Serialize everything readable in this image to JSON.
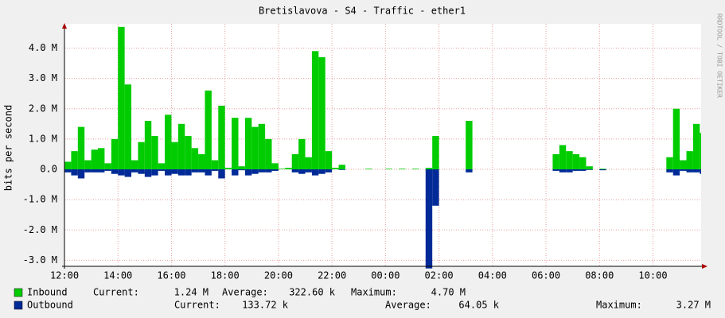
{
  "chart_data": {
    "type": "mirror-area",
    "title": "Bretislavova - S4 - Traffic - ether1",
    "y_label": "bits per second",
    "watermark": "RRDTOOL / TOBI OETIKER",
    "xlim": [
      12,
      35.8
    ],
    "xticks": [
      {
        "value": 12,
        "label": "12:00"
      },
      {
        "value": 14,
        "label": "14:00"
      },
      {
        "value": 16,
        "label": "16:00"
      },
      {
        "value": 18,
        "label": "18:00"
      },
      {
        "value": 20,
        "label": "20:00"
      },
      {
        "value": 22,
        "label": "22:00"
      },
      {
        "value": 24,
        "label": "00:00"
      },
      {
        "value": 26,
        "label": "02:00"
      },
      {
        "value": 28,
        "label": "04:00"
      },
      {
        "value": 30,
        "label": "06:00"
      },
      {
        "value": 32,
        "label": "08:00"
      },
      {
        "value": 34,
        "label": "10:00"
      }
    ],
    "ylim": [
      -3200000.0,
      4800000.0
    ],
    "yticks": [
      {
        "value": -3000000.0,
        "label": "-3.0 M"
      },
      {
        "value": -2000000.0,
        "label": "-2.0 M"
      },
      {
        "value": -1000000.0,
        "label": "-1.0 M"
      },
      {
        "value": 0,
        "label": "0.0"
      },
      {
        "value": 1000000.0,
        "label": "1.0 M"
      },
      {
        "value": 2000000.0,
        "label": "2.0 M"
      },
      {
        "value": 3000000.0,
        "label": "3.0 M"
      },
      {
        "value": 4000000.0,
        "label": "4.0 M"
      }
    ],
    "grid": true,
    "x": [
      12,
      12.25,
      12.5,
      12.75,
      13,
      13.25,
      13.5,
      13.75,
      14,
      14.25,
      14.5,
      14.75,
      15,
      15.25,
      15.5,
      15.75,
      16,
      16.25,
      16.5,
      16.75,
      17,
      17.25,
      17.5,
      17.75,
      18,
      18.25,
      18.5,
      18.75,
      19,
      19.25,
      19.5,
      19.75,
      20,
      20.25,
      20.5,
      20.75,
      21,
      21.25,
      21.5,
      21.75,
      22,
      22.25,
      22.5,
      22.75,
      23,
      23.25,
      23.5,
      23.75,
      24,
      24.25,
      24.5,
      24.75,
      25,
      25.25,
      25.5,
      25.75,
      26,
      26.25,
      26.5,
      26.75,
      27,
      27.25,
      27.5,
      27.75,
      28,
      28.25,
      28.5,
      28.75,
      29,
      29.25,
      29.5,
      29.75,
      30,
      30.25,
      30.5,
      30.75,
      31,
      31.25,
      31.5,
      31.75,
      32,
      32.25,
      32.5,
      32.75,
      33,
      33.25,
      33.5,
      33.75,
      34,
      34.25,
      34.5,
      34.75,
      35,
      35.25,
      35.5,
      35.75
    ],
    "series": [
      {
        "name": "Inbound",
        "color": "#00cc00",
        "values": [
          250000.0,
          600000.0,
          1400000.0,
          300000.0,
          650000.0,
          700000.0,
          200000.0,
          1000000.0,
          4700000.0,
          2800000.0,
          300000.0,
          900000.0,
          1600000.0,
          1100000.0,
          200000.0,
          1800000.0,
          900000.0,
          1500000.0,
          1100000.0,
          700000.0,
          500000.0,
          2600000.0,
          300000.0,
          2100000.0,
          50000.0,
          1700000.0,
          100000.0,
          1700000.0,
          1400000.0,
          1500000.0,
          1000000.0,
          200000.0,
          20000.0,
          50000.0,
          500000.0,
          1000000.0,
          400000.0,
          3900000.0,
          3700000.0,
          600000.0,
          50000.0,
          150000.0,
          0,
          0,
          0,
          20000.0,
          0,
          0,
          20000.0,
          0,
          20000.0,
          0,
          20000.0,
          0,
          50000.0,
          1100000.0,
          0,
          0,
          0,
          0,
          1600000.0,
          0,
          0,
          0,
          0,
          0,
          0,
          0,
          0,
          0,
          0,
          0,
          0,
          500000.0,
          800000.0,
          600000.0,
          500000.0,
          400000.0,
          100000.0,
          0,
          20000.0,
          0,
          0,
          0,
          0,
          0,
          0,
          0,
          0,
          0,
          400000.0,
          2000000.0,
          300000.0,
          600000.0,
          1500000.0,
          1200000.0
        ],
        "stats": [
          {
            "label": "Current:",
            "value": "1.24 M"
          },
          {
            "label": "Average:",
            "value": "322.60 k"
          },
          {
            "label": "Maximum:",
            "value": "4.70 M"
          }
        ]
      },
      {
        "name": "Outbound",
        "color": "#002a97",
        "values": [
          -100000.0,
          -200000.0,
          -300000.0,
          -100000.0,
          -100000.0,
          -100000.0,
          -50000.0,
          -150000.0,
          -200000.0,
          -250000.0,
          -100000.0,
          -150000.0,
          -250000.0,
          -200000.0,
          -50000.0,
          -200000.0,
          -150000.0,
          -200000.0,
          -200000.0,
          -100000.0,
          -100000.0,
          -200000.0,
          -50000.0,
          -300000.0,
          0,
          -200000.0,
          -30000.0,
          -200000.0,
          -150000.0,
          -100000.0,
          -100000.0,
          -50000.0,
          0,
          0,
          -100000.0,
          -150000.0,
          -100000.0,
          -200000.0,
          -150000.0,
          -100000.0,
          0,
          -20000.0,
          0,
          0,
          0,
          0,
          0,
          0,
          0,
          0,
          0,
          0,
          0,
          0,
          -3270000.0,
          -1200000.0,
          0,
          0,
          0,
          0,
          -100000.0,
          0,
          0,
          0,
          0,
          0,
          0,
          0,
          0,
          0,
          0,
          0,
          0,
          -50000.0,
          -100000.0,
          -100000.0,
          -50000.0,
          -50000.0,
          -20000.0,
          0,
          -30000.0,
          0,
          0,
          0,
          0,
          0,
          0,
          0,
          0,
          0,
          -100000.0,
          -200000.0,
          -50000.0,
          -100000.0,
          -100000.0,
          -150000.0
        ],
        "stats": [
          {
            "label": "Current:",
            "value": "133.72 k"
          },
          {
            "label": "Average:",
            "value": "64.05 k"
          },
          {
            "label": "Maximum:",
            "value": "3.27 M"
          }
        ]
      }
    ]
  }
}
